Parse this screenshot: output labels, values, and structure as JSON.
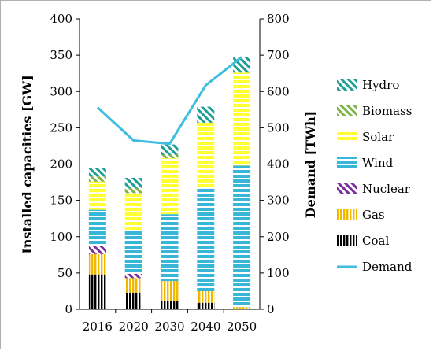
{
  "chart_data": {
    "type": "bar",
    "stacked": true,
    "categories": [
      "2016",
      "2020",
      "2030",
      "2040",
      "2050"
    ],
    "ylabel_left": "Installed capacities [GW]",
    "ylabel_right": "Demand [TWh]",
    "ylim_left": [
      0,
      400
    ],
    "ylim_right": [
      0,
      800
    ],
    "yticks_left": [
      "0",
      "50",
      "100",
      "150",
      "200",
      "250",
      "300",
      "350",
      "400"
    ],
    "yticks_right": [
      "0",
      "100",
      "200",
      "300",
      "400",
      "500",
      "600",
      "700",
      "800"
    ],
    "series": [
      {
        "name": "Coal",
        "values": [
          48,
          23,
          11,
          9,
          1
        ],
        "color": "#000000",
        "pattern": "vertical"
      },
      {
        "name": "Gas",
        "values": [
          28,
          20,
          28,
          16,
          2
        ],
        "color": "#f2b800",
        "pattern": "vertical"
      },
      {
        "name": "Nuclear",
        "values": [
          11,
          6,
          0,
          0,
          0
        ],
        "color": "#7b2f9e",
        "pattern": "diagonal"
      },
      {
        "name": "Wind",
        "values": [
          50,
          59,
          92,
          141,
          195
        ],
        "color": "#38b6d8",
        "pattern": "horizontal"
      },
      {
        "name": "Solar",
        "values": [
          39,
          52,
          77,
          91,
          128
        ],
        "color": "#ffff33",
        "pattern": "horizontal"
      },
      {
        "name": "Biomass",
        "values": [
          7,
          7,
          5,
          0,
          0
        ],
        "color": "#7cb342",
        "pattern": "diagonal"
      },
      {
        "name": "Hydro",
        "values": [
          11,
          14,
          14,
          22,
          22
        ],
        "color": "#1f9e96",
        "pattern": "diagonal"
      }
    ],
    "line_series": {
      "name": "Demand",
      "values": [
        556,
        465,
        456,
        617,
        695
      ],
      "color": "#3dbde0",
      "axis": "right"
    },
    "legend_order": [
      "Hydro",
      "Biomass",
      "Solar",
      "Wind",
      "Nuclear",
      "Gas",
      "Coal",
      "Demand"
    ],
    "legend_position": "right",
    "grid": false
  }
}
